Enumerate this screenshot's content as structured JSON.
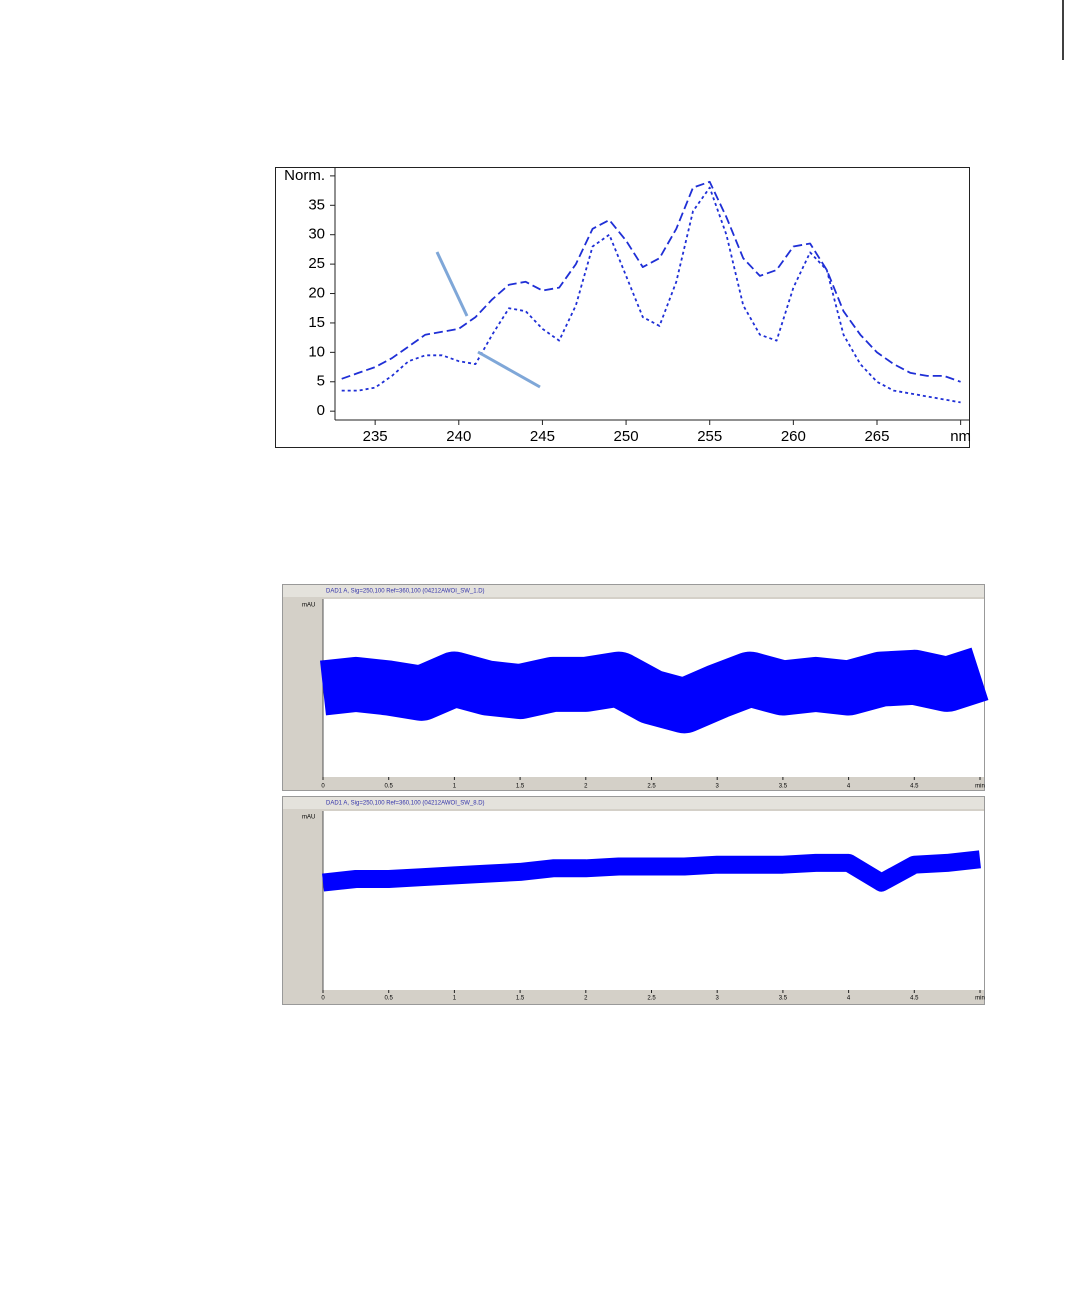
{
  "chart_data": [
    {
      "type": "line",
      "x": [
        233,
        234,
        235,
        236,
        237,
        238,
        239,
        240,
        241,
        242,
        243,
        244,
        245,
        246,
        247,
        248,
        249,
        250,
        251,
        252,
        253,
        254,
        255,
        256,
        257,
        258,
        259,
        260,
        261,
        262,
        263,
        264,
        265,
        266,
        267,
        268,
        269,
        270
      ],
      "series": [
        {
          "color": "#1f2fd6",
          "dash": "dashed",
          "values": [
            5.5,
            6.5,
            7.5,
            9,
            11,
            13,
            13.5,
            14,
            16,
            19,
            21.5,
            22,
            20.5,
            21,
            25,
            31,
            32.5,
            29,
            24.5,
            26,
            31,
            38,
            39,
            33,
            26,
            23,
            24,
            28,
            28.5,
            24,
            17,
            13,
            10,
            8,
            6.5,
            6,
            6,
            5
          ]
        },
        {
          "color": "#1f2fd6",
          "dash": "dotted",
          "values": [
            3.5,
            3.5,
            4,
            6,
            8.5,
            9.5,
            9.5,
            8.5,
            8,
            13,
            17.5,
            17,
            14,
            12,
            18,
            28,
            30,
            23,
            16,
            14.5,
            22,
            34,
            38,
            30,
            18,
            13,
            12,
            21,
            27,
            24,
            13,
            8,
            5,
            3.5,
            3,
            2.5,
            2,
            1.5
          ]
        }
      ],
      "xlim": [
        232.6,
        270.5
      ],
      "xticks": [
        235,
        240,
        245,
        250,
        255,
        260,
        265,
        {
          "value": 270,
          "label": "nm"
        }
      ],
      "ylim": [
        -1.5,
        41
      ],
      "yticks": [
        0,
        5,
        10,
        15,
        20,
        25,
        30,
        35,
        {
          "value": 40,
          "label": "Norm."
        }
      ]
    },
    {
      "type": "line",
      "title": "DAD1 A, Sig=250,100 Ref=360,100 (04212AWOI_SW_1.D)",
      "ylabel": "mAU",
      "color": "#0000ff",
      "x": [
        0,
        0.25,
        0.5,
        0.75,
        1,
        1.25,
        1.5,
        1.75,
        2,
        2.25,
        2.5,
        2.75,
        3,
        3.25,
        3.5,
        3.75,
        4,
        4.25,
        4.5,
        4.75,
        5
      ],
      "values": [
        50,
        52,
        50,
        47,
        55,
        50,
        48,
        52,
        52,
        55,
        45,
        40,
        48,
        55,
        50,
        52,
        50,
        55,
        56,
        52,
        58
      ],
      "xlim": [
        0,
        5
      ],
      "xticks": [
        0,
        0.5,
        1,
        1.5,
        2,
        2.5,
        3,
        3.5,
        4,
        4.5,
        {
          "value": 5,
          "label": "min"
        }
      ],
      "ylim": [
        0,
        100
      ]
    },
    {
      "type": "line",
      "title": "DAD1 A, Sig=250,100 Ref=360,100 (04212AWOI_SW_8.D)",
      "ylabel": "mAU",
      "color": "#0000ff",
      "x": [
        0,
        0.25,
        0.5,
        0.75,
        1,
        1.25,
        1.5,
        1.75,
        2,
        2.25,
        2.5,
        2.75,
        3,
        3.25,
        3.5,
        3.75,
        4,
        4.25,
        4.5,
        4.75,
        5
      ],
      "values": [
        60,
        62,
        62,
        63,
        64,
        65,
        66,
        68,
        68,
        69,
        69,
        69,
        70,
        70,
        70,
        71,
        71,
        60,
        70,
        71,
        73
      ],
      "xlim": [
        0,
        5
      ],
      "xticks": [
        0,
        0.5,
        1,
        1.5,
        2,
        2.5,
        3,
        3.5,
        4,
        4.5,
        {
          "value": 5,
          "label": "min"
        }
      ],
      "ylim": [
        0,
        100
      ]
    }
  ]
}
